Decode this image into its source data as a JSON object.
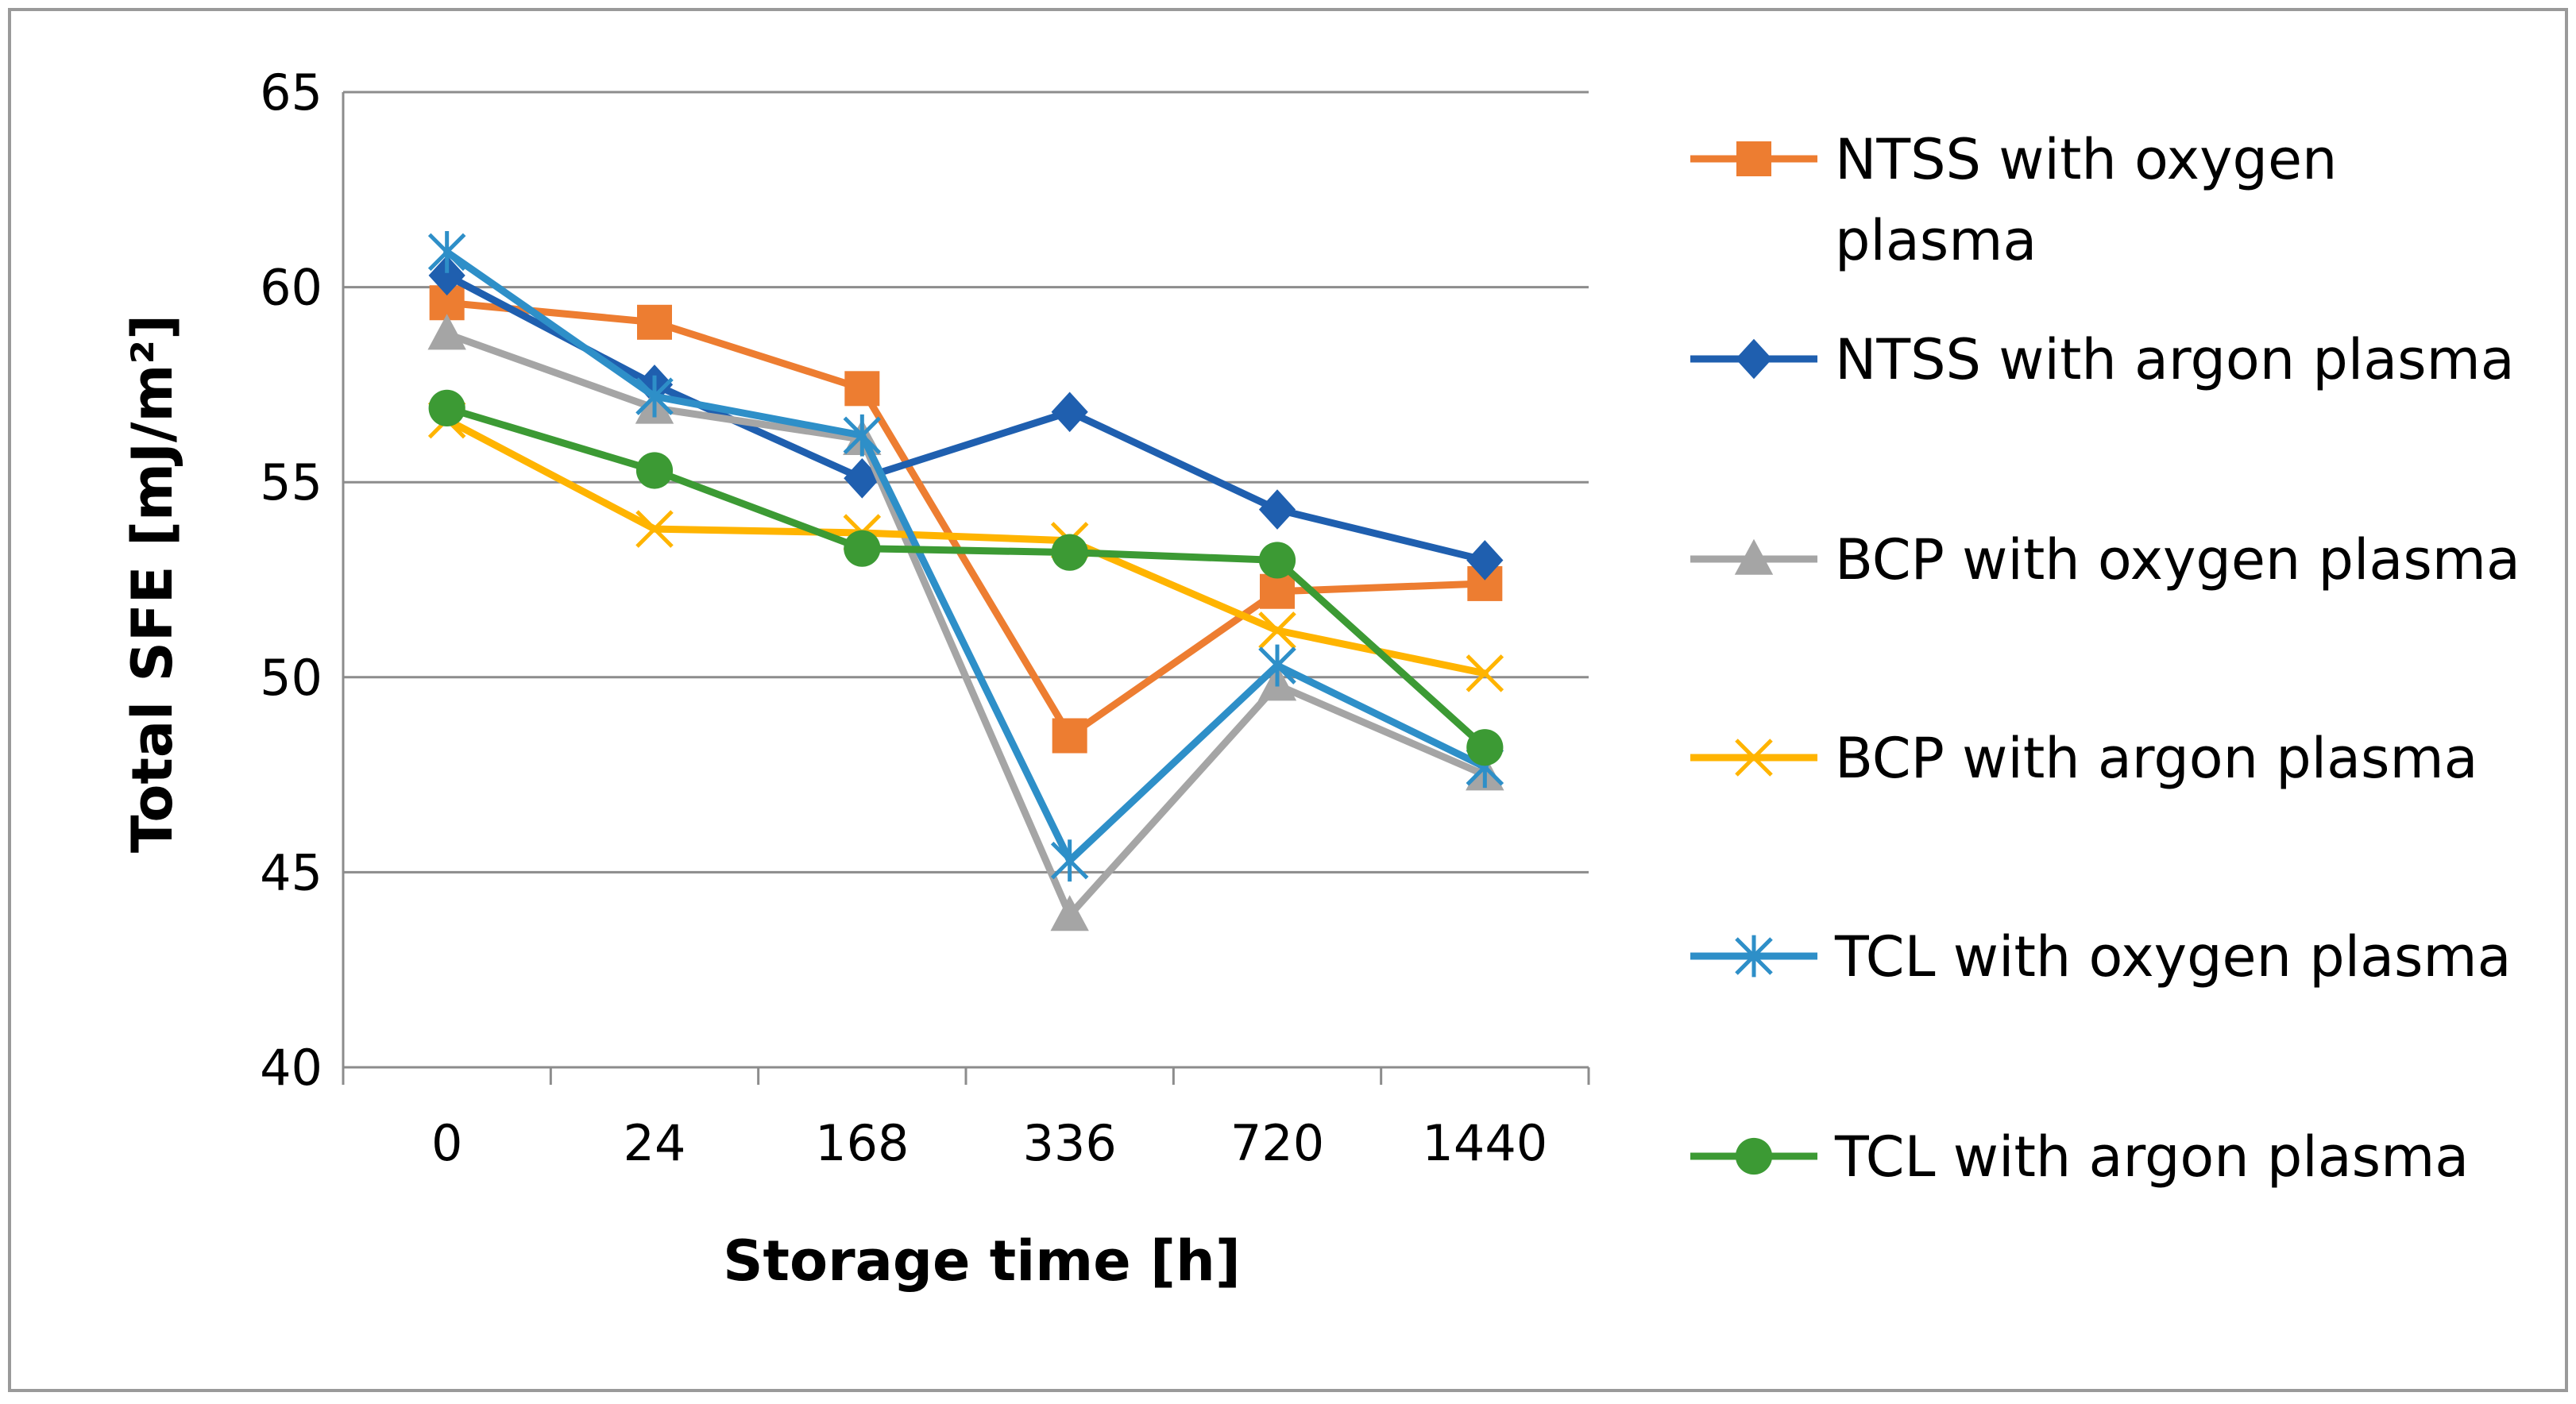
{
  "chart_data": {
    "type": "line",
    "title": "",
    "xlabel": "Storage time [h]",
    "ylabel": "Total SFE [mJ/m²]",
    "ylim": [
      40,
      65
    ],
    "yticks": [
      40,
      45,
      50,
      55,
      60,
      65
    ],
    "ytick_labels": [
      "40",
      "45",
      "50",
      "55",
      "60",
      "65"
    ],
    "categories": [
      "0",
      "24",
      "168",
      "336",
      "720",
      "1440"
    ],
    "grid": "horizontal",
    "legend_position": "right",
    "series": [
      {
        "name": "NTSS with oxygen plasma",
        "legend_lines": [
          "NTSS with oxygen",
          "plasma"
        ],
        "color": "#ED7D31",
        "marker": "square",
        "values": [
          59.6,
          59.1,
          57.4,
          48.5,
          52.2,
          52.4
        ]
      },
      {
        "name": "NTSS with argon plasma",
        "legend_lines": [
          "NTSS with argon plasma"
        ],
        "color": "#1F5FAF",
        "marker": "diamond",
        "values": [
          60.3,
          57.5,
          55.1,
          56.8,
          54.3,
          53.0
        ]
      },
      {
        "name": "BCP with oxygen plasma",
        "legend_lines": [
          "BCP with oxygen plasma"
        ],
        "color": "#A5A5A5",
        "marker": "triangle",
        "values": [
          58.8,
          56.9,
          56.1,
          43.9,
          49.8,
          47.5
        ]
      },
      {
        "name": "BCP with argon plasma",
        "legend_lines": [
          "BCP with argon plasma"
        ],
        "color": "#FFB400",
        "marker": "x",
        "values": [
          56.6,
          53.8,
          53.7,
          53.5,
          51.2,
          50.1
        ]
      },
      {
        "name": "TCL with oxygen plasma",
        "legend_lines": [
          "TCL with oxygen plasma"
        ],
        "color": "#2E8FC8",
        "marker": "asterisk",
        "values": [
          60.9,
          57.2,
          56.2,
          45.3,
          50.3,
          47.7
        ]
      },
      {
        "name": "TCL with argon plasma",
        "legend_lines": [
          "TCL with argon plasma"
        ],
        "color": "#3C9A34",
        "marker": "circle",
        "values": [
          56.9,
          55.3,
          53.3,
          53.2,
          53.0,
          48.2
        ]
      }
    ]
  }
}
